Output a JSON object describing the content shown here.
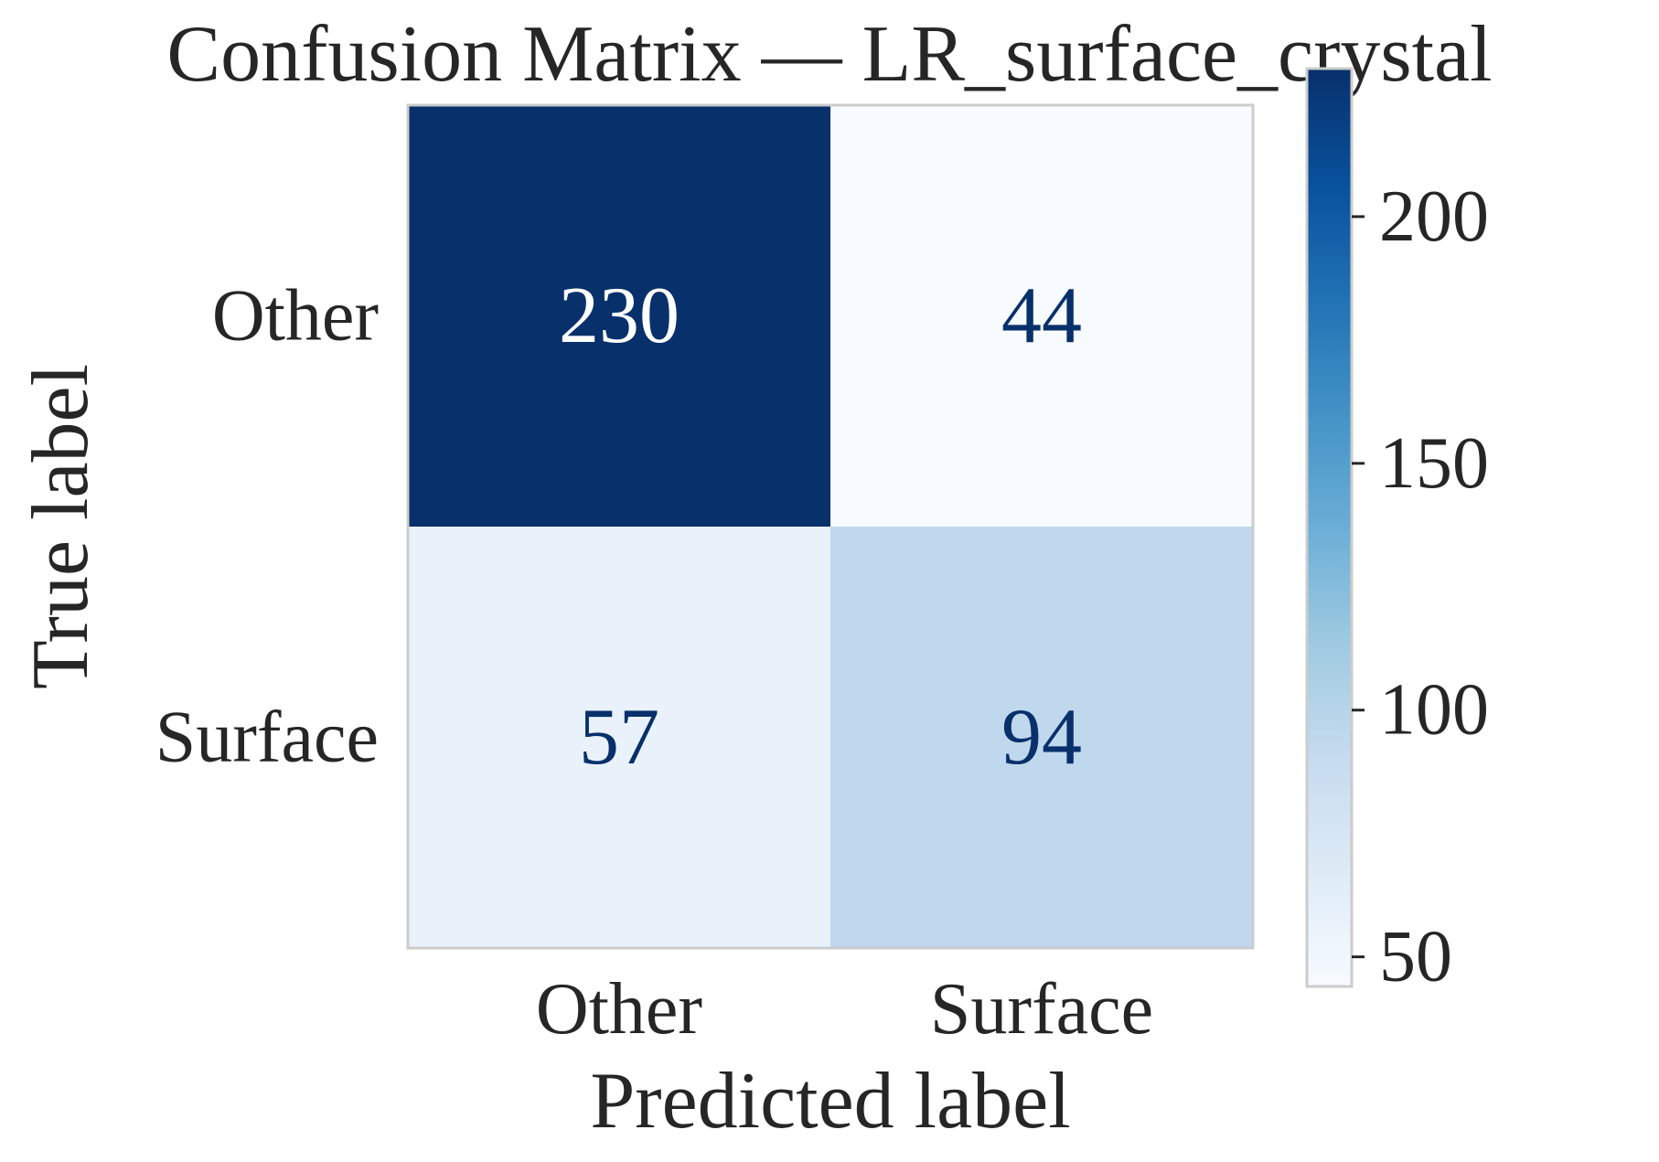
{
  "chart_data": {
    "type": "heatmap",
    "title": "Confusion Matrix — LR_surface_crystal",
    "xlabel": "Predicted label",
    "ylabel": "True label",
    "x_categories": [
      "Other",
      "Surface"
    ],
    "y_categories": [
      "Other",
      "Surface"
    ],
    "matrix": [
      [
        230,
        44
      ],
      [
        57,
        94
      ]
    ],
    "colormap": "Blues",
    "color_range": [
      44,
      230
    ],
    "colorbar": {
      "ticks": [
        50,
        100,
        150,
        200
      ],
      "tick_labels": [
        "50",
        "100",
        "150",
        "200"
      ]
    },
    "grid": false
  },
  "colors": {
    "text": "#262626",
    "frame": "#cccccc",
    "cell_text_dark": "#08306b",
    "cell_text_light": "#ffffff"
  }
}
